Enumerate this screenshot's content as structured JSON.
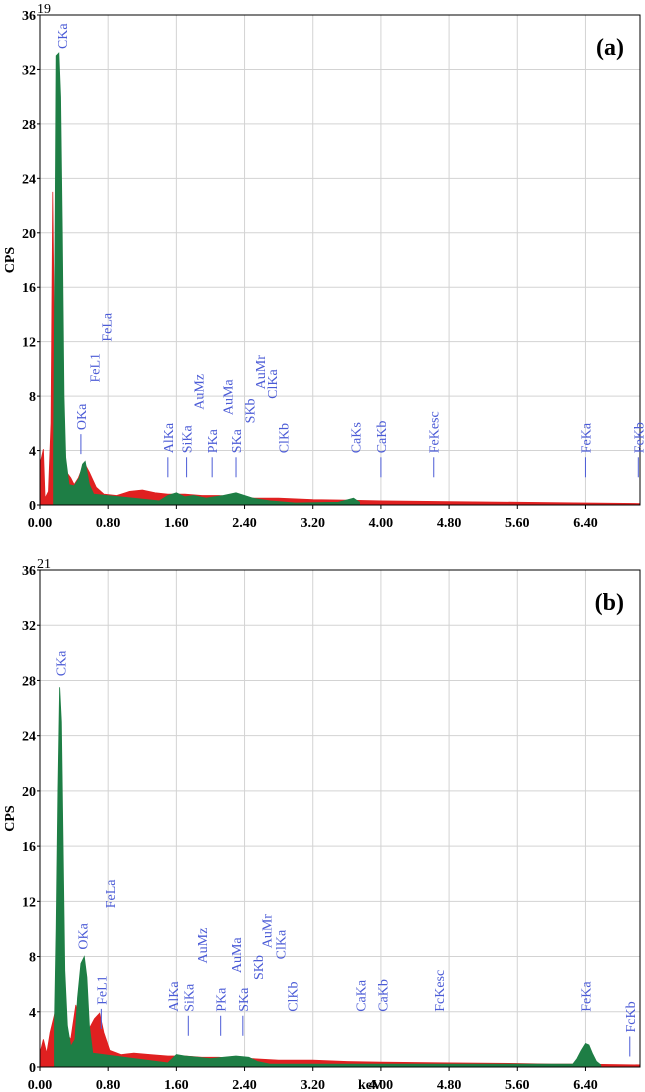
{
  "colors": {
    "red": "#e02020",
    "green": "#1e7e45",
    "peak_label": "#4b5bd6",
    "grid": "#d3d3d3",
    "axis": "#000000"
  },
  "chart_data": [
    {
      "type": "area",
      "panel_label": "(a)",
      "counts_label": "19",
      "xlabel": "",
      "ylabel": "CPS",
      "xlim": [
        0,
        7.04
      ],
      "ylim": [
        0,
        36
      ],
      "xticks": [
        "0.00",
        "0.80",
        "1.60",
        "2.40",
        "3.20",
        "4.00",
        "4.80",
        "5.60",
        "6.40"
      ],
      "yticks": [
        "0",
        "4",
        "8",
        "12",
        "16",
        "20",
        "24",
        "28",
        "32",
        "36"
      ],
      "grid": true,
      "spectrum": {
        "red": [
          [
            0.0,
            3.0
          ],
          [
            0.04,
            4.1
          ],
          [
            0.06,
            0.5
          ],
          [
            0.1,
            1.0
          ],
          [
            0.13,
            6.0
          ],
          [
            0.15,
            23.0
          ],
          [
            0.17,
            12.0
          ],
          [
            0.2,
            5.0
          ],
          [
            0.24,
            3.0
          ],
          [
            0.3,
            2.5
          ],
          [
            0.36,
            2.0
          ],
          [
            0.4,
            1.5
          ],
          [
            0.45,
            2.0
          ],
          [
            0.52,
            3.1
          ],
          [
            0.58,
            2.4
          ],
          [
            0.66,
            1.3
          ],
          [
            0.75,
            0.8
          ],
          [
            0.9,
            0.7
          ],
          [
            1.05,
            1.0
          ],
          [
            1.2,
            1.1
          ],
          [
            1.35,
            0.9
          ],
          [
            1.5,
            0.8
          ],
          [
            1.7,
            0.8
          ],
          [
            1.9,
            0.7
          ],
          [
            2.1,
            0.7
          ],
          [
            2.3,
            0.6
          ],
          [
            2.5,
            0.5
          ],
          [
            2.8,
            0.5
          ],
          [
            3.2,
            0.4
          ],
          [
            3.6,
            0.35
          ],
          [
            4.0,
            0.3
          ],
          [
            4.8,
            0.25
          ],
          [
            5.6,
            0.2
          ],
          [
            6.4,
            0.15
          ],
          [
            7.04,
            0.1
          ]
        ],
        "green": [
          [
            0.16,
            4.0
          ],
          [
            0.18,
            22.0
          ],
          [
            0.19,
            33.0
          ],
          [
            0.22,
            33.2
          ],
          [
            0.24,
            30.0
          ],
          [
            0.26,
            20.0
          ],
          [
            0.28,
            8.0
          ],
          [
            0.3,
            3.5
          ],
          [
            0.34,
            1.5
          ],
          [
            0.4,
            1.4
          ],
          [
            0.46,
            2.0
          ],
          [
            0.5,
            3.0
          ],
          [
            0.53,
            3.2
          ],
          [
            0.58,
            1.5
          ],
          [
            0.63,
            0.8
          ],
          [
            1.4,
            0.3
          ],
          [
            1.5,
            0.7
          ],
          [
            1.6,
            0.9
          ],
          [
            1.7,
            0.6
          ],
          [
            1.8,
            0.7
          ],
          [
            1.95,
            0.5
          ],
          [
            2.05,
            0.6
          ],
          [
            2.15,
            0.7
          ],
          [
            2.3,
            0.9
          ],
          [
            2.4,
            0.7
          ],
          [
            2.5,
            0.5
          ],
          [
            2.7,
            0.3
          ],
          [
            3.0,
            0.15
          ],
          [
            3.5,
            0.2
          ],
          [
            3.68,
            0.5
          ],
          [
            3.75,
            0.2
          ]
        ]
      },
      "peaks": [
        {
          "label": "CKa",
          "x": 0.26,
          "y": 33.5,
          "line": false
        },
        {
          "label": "OKa",
          "x": 0.48,
          "y": 5.5,
          "line": true
        },
        {
          "label": "FeL1",
          "x": 0.64,
          "y": 9.0,
          "line": false
        },
        {
          "label": "FeLa",
          "x": 0.78,
          "y": 12.0,
          "line": false
        },
        {
          "label": "AlKa",
          "x": 1.5,
          "y": 3.8,
          "line": true
        },
        {
          "label": "SiKa",
          "x": 1.72,
          "y": 3.8,
          "line": true
        },
        {
          "label": "AuMz",
          "x": 1.86,
          "y": 7.0,
          "line": false
        },
        {
          "label": "PKa",
          "x": 2.02,
          "y": 3.8,
          "line": true
        },
        {
          "label": "AuMa",
          "x": 2.2,
          "y": 6.6,
          "line": false
        },
        {
          "label": "SKa",
          "x": 2.3,
          "y": 3.8,
          "line": true
        },
        {
          "label": "SKb",
          "x": 2.46,
          "y": 6.0,
          "line": false
        },
        {
          "label": "AuMr",
          "x": 2.58,
          "y": 8.5,
          "line": false
        },
        {
          "label": "ClKa",
          "x": 2.72,
          "y": 7.8,
          "line": false
        },
        {
          "label": "ClKb",
          "x": 2.86,
          "y": 3.8,
          "line": false
        },
        {
          "label": "CaKs",
          "x": 3.7,
          "y": 3.8,
          "line": false
        },
        {
          "label": "CaKb",
          "x": 4.0,
          "y": 3.8,
          "line": true
        },
        {
          "label": "FeKesc",
          "x": 4.62,
          "y": 3.8,
          "line": true
        },
        {
          "label": "FeKa",
          "x": 6.4,
          "y": 3.8,
          "line": true
        },
        {
          "label": "FeKb",
          "x": 7.02,
          "y": 3.8,
          "line": true
        }
      ]
    },
    {
      "type": "area",
      "panel_label": "(b)",
      "counts_label": "21",
      "xlabel": "keV",
      "ylabel": "CPS",
      "xlim": [
        0,
        7.04
      ],
      "ylim": [
        0,
        36
      ],
      "xticks": [
        "0.00",
        "0.80",
        "1.60",
        "2.40",
        "3.20",
        "4.00",
        "4.80",
        "5.60",
        "6.40"
      ],
      "yticks": [
        "0",
        "4",
        "8",
        "12",
        "16",
        "20",
        "24",
        "28",
        "32",
        "36"
      ],
      "grid": true,
      "spectrum": {
        "red": [
          [
            0.0,
            1.0
          ],
          [
            0.04,
            2.0
          ],
          [
            0.08,
            1.0
          ],
          [
            0.12,
            2.5
          ],
          [
            0.18,
            4.0
          ],
          [
            0.25,
            3.0
          ],
          [
            0.3,
            2.5
          ],
          [
            0.36,
            2.0
          ],
          [
            0.42,
            4.5
          ],
          [
            0.46,
            3.0
          ],
          [
            0.52,
            2.0
          ],
          [
            0.58,
            2.8
          ],
          [
            0.64,
            3.5
          ],
          [
            0.7,
            3.9
          ],
          [
            0.75,
            2.5
          ],
          [
            0.82,
            1.2
          ],
          [
            0.95,
            0.9
          ],
          [
            1.1,
            1.0
          ],
          [
            1.3,
            0.9
          ],
          [
            1.5,
            0.8
          ],
          [
            1.7,
            0.8
          ],
          [
            1.9,
            0.7
          ],
          [
            2.1,
            0.7
          ],
          [
            2.3,
            0.6
          ],
          [
            2.5,
            0.6
          ],
          [
            2.8,
            0.5
          ],
          [
            3.2,
            0.5
          ],
          [
            3.6,
            0.4
          ],
          [
            4.0,
            0.35
          ],
          [
            4.8,
            0.3
          ],
          [
            5.6,
            0.25
          ],
          [
            6.0,
            0.2
          ],
          [
            6.4,
            0.2
          ],
          [
            7.04,
            0.15
          ]
        ],
        "green": [
          [
            0.17,
            3.0
          ],
          [
            0.19,
            10.0
          ],
          [
            0.21,
            20.0
          ],
          [
            0.23,
            27.5
          ],
          [
            0.25,
            25.0
          ],
          [
            0.27,
            16.0
          ],
          [
            0.29,
            7.0
          ],
          [
            0.32,
            3.0
          ],
          [
            0.36,
            1.5
          ],
          [
            0.41,
            2.0
          ],
          [
            0.44,
            5.0
          ],
          [
            0.48,
            7.5
          ],
          [
            0.52,
            8.0
          ],
          [
            0.55,
            6.5
          ],
          [
            0.58,
            3.0
          ],
          [
            0.62,
            1.0
          ],
          [
            1.5,
            0.3
          ],
          [
            1.6,
            0.9
          ],
          [
            1.7,
            0.8
          ],
          [
            1.85,
            0.7
          ],
          [
            2.0,
            0.6
          ],
          [
            2.15,
            0.7
          ],
          [
            2.3,
            0.8
          ],
          [
            2.45,
            0.7
          ],
          [
            2.55,
            0.4
          ],
          [
            2.7,
            0.2
          ],
          [
            6.25,
            0.2
          ],
          [
            6.3,
            0.6
          ],
          [
            6.35,
            1.2
          ],
          [
            6.4,
            1.7
          ],
          [
            6.44,
            1.6
          ],
          [
            6.48,
            1.0
          ],
          [
            6.53,
            0.4
          ],
          [
            6.58,
            0.15
          ]
        ]
      },
      "peaks": [
        {
          "label": "CKa",
          "x": 0.24,
          "y": 28.3,
          "line": false
        },
        {
          "label": "OKa",
          "x": 0.5,
          "y": 8.5,
          "line": false
        },
        {
          "label": "FeL1",
          "x": 0.72,
          "y": 4.5,
          "line": true
        },
        {
          "label": "FeLa",
          "x": 0.82,
          "y": 11.5,
          "line": false
        },
        {
          "label": "AlKa",
          "x": 1.56,
          "y": 4.0,
          "line": false
        },
        {
          "label": "SiKa",
          "x": 1.74,
          "y": 4.0,
          "line": true
        },
        {
          "label": "AuMz",
          "x": 1.9,
          "y": 7.5,
          "line": false
        },
        {
          "label": "PKa",
          "x": 2.12,
          "y": 4.0,
          "line": true
        },
        {
          "label": "AuMa",
          "x": 2.3,
          "y": 6.8,
          "line": false
        },
        {
          "label": "SKa",
          "x": 2.38,
          "y": 4.0,
          "line": true
        },
        {
          "label": "SKb",
          "x": 2.56,
          "y": 6.3,
          "line": false
        },
        {
          "label": "AuMr",
          "x": 2.66,
          "y": 8.6,
          "line": false
        },
        {
          "label": "ClKa",
          "x": 2.82,
          "y": 7.8,
          "line": false
        },
        {
          "label": "ClKb",
          "x": 2.96,
          "y": 4.0,
          "line": false
        },
        {
          "label": "CaKa",
          "x": 3.76,
          "y": 4.0,
          "line": false
        },
        {
          "label": "CaKb",
          "x": 4.02,
          "y": 4.0,
          "line": false
        },
        {
          "label": "FcKesc",
          "x": 4.68,
          "y": 4.0,
          "line": false
        },
        {
          "label": "FeKa",
          "x": 6.4,
          "y": 4.0,
          "line": false
        },
        {
          "label": "FcKb",
          "x": 6.92,
          "y": 2.5,
          "line": true
        }
      ]
    }
  ]
}
